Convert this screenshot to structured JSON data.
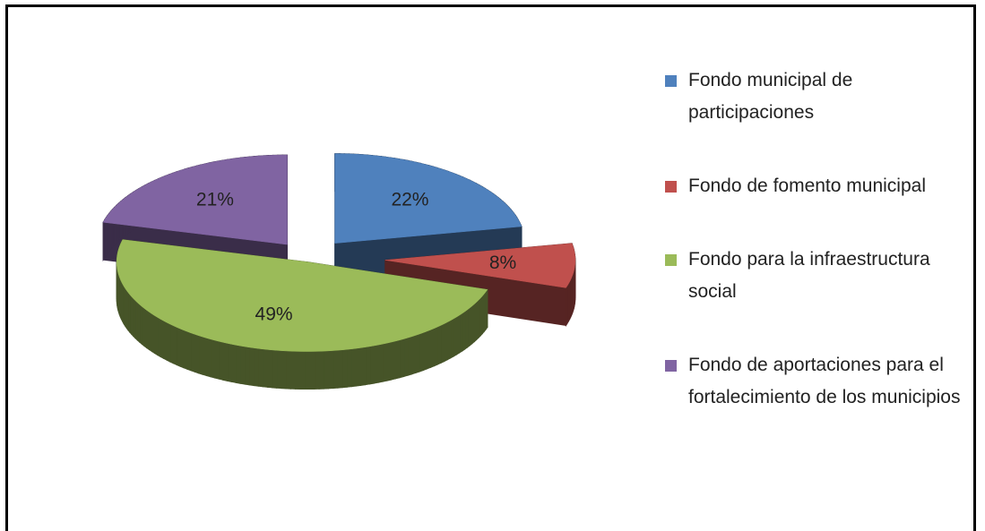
{
  "chart_data": {
    "type": "pie",
    "categories": [
      "Fondo municipal de participaciones",
      "Fondo de fomento municipal",
      "Fondo para la infraestructura social",
      "Fondo de aportaciones para el fortalecimiento de los municipios"
    ],
    "values": [
      22,
      8,
      49,
      21
    ],
    "value_labels": [
      "22%",
      "8%",
      "49%",
      "21%"
    ],
    "colors": [
      "#4f81bd",
      "#c0504d",
      "#9bbb59",
      "#8064a2"
    ],
    "legend": "right"
  }
}
